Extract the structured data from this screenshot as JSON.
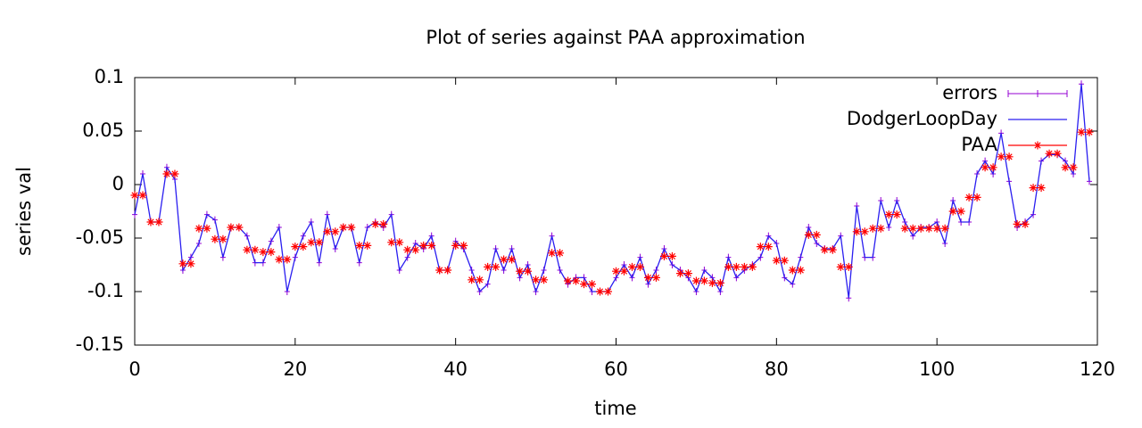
{
  "chart_data": {
    "type": "line",
    "title": "Plot of series against PAA approximation",
    "xlabel": "time",
    "ylabel": "series val",
    "x": [
      0,
      1,
      2,
      3,
      4,
      5,
      6,
      7,
      8,
      9,
      10,
      11,
      12,
      13,
      14,
      15,
      16,
      17,
      18,
      19,
      20,
      21,
      22,
      23,
      24,
      25,
      26,
      27,
      28,
      29,
      30,
      31,
      32,
      33,
      34,
      35,
      36,
      37,
      38,
      39,
      40,
      41,
      42,
      43,
      44,
      45,
      46,
      47,
      48,
      49,
      50,
      51,
      52,
      53,
      54,
      55,
      56,
      57,
      58,
      59,
      60,
      61,
      62,
      63,
      64,
      65,
      66,
      67,
      68,
      69,
      70,
      71,
      72,
      73,
      74,
      75,
      76,
      77,
      78,
      79,
      80,
      81,
      82,
      83,
      84,
      85,
      86,
      87,
      88,
      89,
      90,
      91,
      92,
      93,
      94,
      95,
      96,
      97,
      98,
      99,
      100,
      101,
      102,
      103,
      104,
      105,
      106,
      107,
      108,
      109,
      110,
      111,
      112,
      113,
      114,
      115,
      116,
      117,
      118,
      119
    ],
    "series": [
      {
        "name": "errors",
        "color": "#9400d3",
        "style": "errorbars",
        "values": [
          -0.028,
          0.01,
          -0.035,
          -0.035,
          0.016,
          0.005,
          -0.08,
          -0.068,
          -0.055,
          -0.028,
          -0.033,
          -0.068,
          -0.04,
          -0.04,
          -0.048,
          -0.073,
          -0.073,
          -0.053,
          -0.04,
          -0.1,
          -0.068,
          -0.048,
          -0.035,
          -0.073,
          -0.028,
          -0.06,
          -0.04,
          -0.04,
          -0.073,
          -0.04,
          -0.035,
          -0.04,
          -0.028,
          -0.08,
          -0.068,
          -0.055,
          -0.06,
          -0.048,
          -0.08,
          -0.08,
          -0.053,
          -0.06,
          -0.08,
          -0.1,
          -0.093,
          -0.06,
          -0.08,
          -0.06,
          -0.087,
          -0.075,
          -0.1,
          -0.08,
          -0.048,
          -0.08,
          -0.093,
          -0.087,
          -0.087,
          -0.1,
          -0.1,
          -0.1,
          -0.087,
          -0.075,
          -0.087,
          -0.068,
          -0.093,
          -0.08,
          -0.06,
          -0.075,
          -0.08,
          -0.087,
          -0.1,
          -0.08,
          -0.087,
          -0.1,
          -0.068,
          -0.087,
          -0.08,
          -0.075,
          -0.068,
          -0.048,
          -0.055,
          -0.087,
          -0.093,
          -0.068,
          -0.04,
          -0.055,
          -0.06,
          -0.06,
          -0.048,
          -0.106,
          -0.02,
          -0.068,
          -0.068,
          -0.015,
          -0.04,
          -0.015,
          -0.035,
          -0.048,
          -0.04,
          -0.04,
          -0.035,
          -0.055,
          -0.015,
          -0.035,
          -0.035,
          0.01,
          0.022,
          0.01,
          0.048,
          0.003,
          -0.04,
          -0.035,
          -0.028,
          0.022,
          0.028,
          0.028,
          0.022,
          0.01,
          0.094,
          0.003
        ]
      },
      {
        "name": "DodgerLoopDay",
        "color": "#2a1ef0",
        "style": "lines",
        "values": [
          -0.028,
          0.01,
          -0.035,
          -0.035,
          0.016,
          0.005,
          -0.08,
          -0.068,
          -0.055,
          -0.028,
          -0.033,
          -0.068,
          -0.04,
          -0.04,
          -0.048,
          -0.073,
          -0.073,
          -0.053,
          -0.04,
          -0.1,
          -0.068,
          -0.048,
          -0.035,
          -0.073,
          -0.028,
          -0.06,
          -0.04,
          -0.04,
          -0.073,
          -0.04,
          -0.035,
          -0.04,
          -0.028,
          -0.08,
          -0.068,
          -0.055,
          -0.06,
          -0.048,
          -0.08,
          -0.08,
          -0.053,
          -0.06,
          -0.08,
          -0.1,
          -0.093,
          -0.06,
          -0.08,
          -0.06,
          -0.087,
          -0.075,
          -0.1,
          -0.08,
          -0.048,
          -0.08,
          -0.093,
          -0.087,
          -0.087,
          -0.1,
          -0.1,
          -0.1,
          -0.087,
          -0.075,
          -0.087,
          -0.068,
          -0.093,
          -0.08,
          -0.06,
          -0.075,
          -0.08,
          -0.087,
          -0.1,
          -0.08,
          -0.087,
          -0.1,
          -0.068,
          -0.087,
          -0.08,
          -0.075,
          -0.068,
          -0.048,
          -0.055,
          -0.087,
          -0.093,
          -0.068,
          -0.04,
          -0.055,
          -0.06,
          -0.06,
          -0.048,
          -0.106,
          -0.02,
          -0.068,
          -0.068,
          -0.015,
          -0.04,
          -0.015,
          -0.035,
          -0.048,
          -0.04,
          -0.04,
          -0.035,
          -0.055,
          -0.015,
          -0.035,
          -0.035,
          0.01,
          0.022,
          0.01,
          0.048,
          0.003,
          -0.04,
          -0.035,
          -0.028,
          0.022,
          0.028,
          0.028,
          0.022,
          0.01,
          0.094,
          0.003
        ]
      },
      {
        "name": "PAA",
        "color": "#ff0000",
        "style": "points",
        "values": [
          -0.01,
          -0.01,
          -0.035,
          -0.035,
          0.01,
          0.01,
          -0.074,
          -0.074,
          -0.041,
          -0.041,
          -0.051,
          -0.051,
          -0.04,
          -0.04,
          -0.061,
          -0.061,
          -0.063,
          -0.063,
          -0.07,
          -0.07,
          -0.058,
          -0.058,
          -0.054,
          -0.054,
          -0.044,
          -0.044,
          -0.04,
          -0.04,
          -0.057,
          -0.057,
          -0.037,
          -0.037,
          -0.054,
          -0.054,
          -0.061,
          -0.061,
          -0.057,
          -0.057,
          -0.08,
          -0.08,
          -0.057,
          -0.057,
          -0.089,
          -0.089,
          -0.077,
          -0.077,
          -0.07,
          -0.07,
          -0.081,
          -0.081,
          -0.089,
          -0.089,
          -0.064,
          -0.064,
          -0.09,
          -0.09,
          -0.093,
          -0.093,
          -0.1,
          -0.1,
          -0.081,
          -0.081,
          -0.077,
          -0.077,
          -0.087,
          -0.087,
          -0.067,
          -0.067,
          -0.083,
          -0.083,
          -0.09,
          -0.09,
          -0.092,
          -0.092,
          -0.077,
          -0.077,
          -0.077,
          -0.077,
          -0.058,
          -0.058,
          -0.071,
          -0.071,
          -0.08,
          -0.08,
          -0.047,
          -0.047,
          -0.061,
          -0.061,
          -0.077,
          -0.077,
          -0.044,
          -0.044,
          -0.041,
          -0.041,
          -0.028,
          -0.028,
          -0.041,
          -0.041,
          -0.041,
          -0.041,
          -0.041,
          -0.041,
          -0.025,
          -0.025,
          -0.012,
          -0.012,
          0.016,
          0.016,
          0.026,
          0.026,
          -0.037,
          -0.037,
          -0.003,
          -0.003,
          0.029,
          0.029,
          0.016,
          0.016,
          0.049,
          0.049
        ]
      }
    ],
    "xlim": [
      0,
      120
    ],
    "xticks": [
      0,
      20,
      40,
      60,
      80,
      100,
      120
    ],
    "ylim": [
      -0.15,
      0.1
    ],
    "yticks": [
      -0.15,
      -0.1,
      -0.05,
      0,
      0.05,
      0.1
    ],
    "grid": false,
    "legend": "upper right"
  }
}
